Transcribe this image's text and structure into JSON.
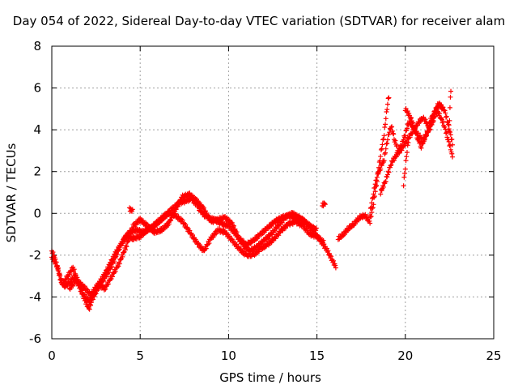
{
  "chart_data": {
    "type": "scatter",
    "title": "Day 054 of 2022, Sidereal Day-to-day VTEC variation (SDTVAR) for receiver alam",
    "xlabel": "GPS time / hours",
    "ylabel": "SDTVAR / TECUs",
    "xlim": [
      0,
      25
    ],
    "ylim": [
      -6,
      8
    ],
    "xticks": [
      0,
      5,
      10,
      15,
      20,
      25
    ],
    "yticks": [
      -6,
      -4,
      -2,
      0,
      2,
      4,
      6,
      8
    ],
    "xtick_labels": [
      "0",
      "5",
      "10",
      "15",
      "20",
      "25"
    ],
    "ytick_labels": [
      "-6",
      "-4",
      "-2",
      "0",
      "2",
      "4",
      "6",
      "8"
    ],
    "grid": true,
    "marker": "+",
    "series": [
      {
        "name": "SDTVAR",
        "color": "#ff0000",
        "tracks": [
          [
            [
              0.0,
              -1.8
            ],
            [
              0.2,
              -2.2
            ],
            [
              0.35,
              -2.7
            ],
            [
              0.5,
              -3.2
            ],
            [
              0.7,
              -3.5
            ],
            [
              1.0,
              -3.3
            ],
            [
              1.3,
              -3.0
            ],
            [
              1.6,
              -3.6
            ],
            [
              1.9,
              -4.2
            ],
            [
              2.1,
              -4.6
            ],
            [
              2.3,
              -4.1
            ],
            [
              2.6,
              -3.6
            ],
            [
              2.9,
              -3.2
            ],
            [
              3.2,
              -2.8
            ],
            [
              3.5,
              -2.3
            ],
            [
              3.8,
              -1.7
            ],
            [
              4.1,
              -1.2
            ],
            [
              4.4,
              -0.9
            ],
            [
              4.8,
              -0.8
            ],
            [
              5.2,
              -0.9
            ],
            [
              5.6,
              -0.7
            ],
            [
              6.0,
              -0.4
            ],
            [
              6.4,
              -0.1
            ],
            [
              6.8,
              0.2
            ],
            [
              7.2,
              0.5
            ],
            [
              7.6,
              0.6
            ],
            [
              7.9,
              0.7
            ],
            [
              8.2,
              0.4
            ],
            [
              8.5,
              0.0
            ],
            [
              8.8,
              -0.2
            ],
            [
              9.2,
              -0.3
            ],
            [
              9.6,
              -0.5
            ],
            [
              10.0,
              -0.6
            ],
            [
              10.4,
              -1.0
            ],
            [
              10.8,
              -1.5
            ],
            [
              11.2,
              -1.8
            ],
            [
              11.6,
              -1.6
            ],
            [
              12.0,
              -1.3
            ],
            [
              12.4,
              -1.0
            ],
            [
              12.8,
              -0.6
            ],
            [
              13.2,
              -0.2
            ],
            [
              13.6,
              0.0
            ],
            [
              14.0,
              -0.2
            ],
            [
              14.4,
              -0.5
            ],
            [
              14.8,
              -0.9
            ],
            [
              15.2,
              -1.3
            ],
            [
              15.6,
              -1.8
            ],
            [
              15.9,
              -2.3
            ],
            [
              16.1,
              -2.6
            ]
          ],
          [
            [
              0.0,
              -2.1
            ],
            [
              0.3,
              -2.5
            ],
            [
              0.6,
              -3.4
            ],
            [
              0.9,
              -3.0
            ],
            [
              1.2,
              -2.6
            ],
            [
              1.5,
              -3.3
            ],
            [
              1.8,
              -3.9
            ],
            [
              2.1,
              -4.2
            ],
            [
              2.4,
              -3.8
            ],
            [
              2.7,
              -3.3
            ],
            [
              3.0,
              -2.9
            ],
            [
              3.3,
              -2.4
            ],
            [
              3.6,
              -1.9
            ],
            [
              3.9,
              -1.5
            ],
            [
              4.2,
              -1.1
            ],
            [
              4.6,
              -1.2
            ],
            [
              5.0,
              -1.1
            ],
            [
              5.4,
              -0.8
            ],
            [
              5.8,
              -0.6
            ],
            [
              6.2,
              -0.3
            ],
            [
              6.6,
              0.0
            ],
            [
              7.0,
              -0.1
            ],
            [
              7.4,
              -0.4
            ],
            [
              7.8,
              -0.9
            ],
            [
              8.2,
              -1.4
            ],
            [
              8.6,
              -1.8
            ],
            [
              9.0,
              -1.2
            ],
            [
              9.4,
              -0.8
            ],
            [
              9.8,
              -0.9
            ],
            [
              10.2,
              -1.3
            ],
            [
              10.6,
              -1.7
            ],
            [
              11.0,
              -2.0
            ],
            [
              11.4,
              -2.0
            ],
            [
              11.8,
              -1.7
            ],
            [
              12.2,
              -1.5
            ],
            [
              12.6,
              -1.2
            ],
            [
              13.0,
              -0.8
            ],
            [
              13.4,
              -0.5
            ],
            [
              13.8,
              -0.4
            ],
            [
              14.2,
              -0.6
            ],
            [
              14.6,
              -1.0
            ],
            [
              15.0,
              -1.1
            ],
            [
              15.4,
              -1.4
            ]
          ],
          [
            [
              1.0,
              -3.6
            ],
            [
              1.4,
              -3.2
            ],
            [
              1.8,
              -3.5
            ],
            [
              2.2,
              -3.9
            ],
            [
              2.6,
              -3.4
            ],
            [
              3.0,
              -3.6
            ],
            [
              3.4,
              -3.0
            ],
            [
              3.8,
              -2.4
            ],
            [
              4.2,
              -1.6
            ],
            [
              4.6,
              -0.6
            ],
            [
              5.0,
              -0.3
            ],
            [
              5.4,
              -0.6
            ],
            [
              5.8,
              -0.9
            ],
            [
              6.2,
              -0.8
            ],
            [
              6.6,
              -0.5
            ],
            [
              7.0,
              0.2
            ],
            [
              7.4,
              0.8
            ],
            [
              7.8,
              0.9
            ],
            [
              8.2,
              0.6
            ],
            [
              8.6,
              0.2
            ],
            [
              9.0,
              -0.4
            ],
            [
              9.4,
              -0.3
            ],
            [
              9.8,
              -0.2
            ],
            [
              10.2,
              -0.5
            ],
            [
              10.6,
              -1.2
            ],
            [
              11.0,
              -1.5
            ],
            [
              11.4,
              -1.3
            ],
            [
              11.8,
              -1.0
            ],
            [
              12.2,
              -0.7
            ],
            [
              12.6,
              -0.4
            ],
            [
              13.0,
              -0.2
            ],
            [
              13.4,
              -0.1
            ],
            [
              13.8,
              -0.2
            ],
            [
              14.2,
              -0.3
            ],
            [
              14.6,
              -0.6
            ],
            [
              15.0,
              -0.8
            ]
          ],
          [
            [
              16.2,
              -1.2
            ],
            [
              16.5,
              -1.0
            ],
            [
              16.8,
              -0.7
            ],
            [
              17.1,
              -0.5
            ],
            [
              17.4,
              -0.2
            ],
            [
              17.7,
              -0.1
            ],
            [
              18.0,
              -0.4
            ],
            [
              18.2,
              0.5
            ],
            [
              18.4,
              1.6
            ],
            [
              18.6,
              2.8
            ],
            [
              18.8,
              3.8
            ],
            [
              19.0,
              5.3
            ],
            [
              19.1,
              5.7
            ]
          ],
          [
            [
              18.0,
              0.0
            ],
            [
              18.2,
              1.0
            ],
            [
              18.4,
              1.8
            ],
            [
              18.6,
              2.2
            ],
            [
              18.8,
              2.6
            ],
            [
              19.0,
              3.6
            ],
            [
              19.2,
              4.2
            ],
            [
              19.4,
              3.5
            ],
            [
              19.6,
              3.0
            ],
            [
              19.8,
              3.3
            ],
            [
              20.0,
              3.8
            ],
            [
              20.2,
              4.4
            ],
            [
              20.4,
              4.2
            ],
            [
              20.6,
              3.9
            ],
            [
              20.8,
              3.7
            ],
            [
              21.0,
              3.5
            ],
            [
              21.2,
              3.8
            ],
            [
              21.4,
              4.1
            ],
            [
              21.6,
              4.5
            ],
            [
              21.8,
              4.9
            ],
            [
              22.0,
              4.6
            ],
            [
              22.2,
              4.2
            ],
            [
              22.4,
              3.6
            ],
            [
              22.6,
              3.0
            ],
            [
              22.7,
              2.5
            ]
          ],
          [
            [
              18.6,
              1.0
            ],
            [
              18.9,
              1.6
            ],
            [
              19.2,
              2.4
            ],
            [
              19.5,
              2.8
            ],
            [
              19.8,
              3.1
            ],
            [
              20.1,
              3.5
            ],
            [
              20.4,
              3.9
            ],
            [
              20.7,
              4.3
            ],
            [
              21.0,
              4.6
            ],
            [
              21.3,
              4.2
            ],
            [
              21.6,
              4.8
            ],
            [
              21.9,
              5.2
            ],
            [
              22.2,
              5.0
            ],
            [
              22.5,
              4.0
            ],
            [
              22.7,
              3.2
            ]
          ],
          [
            [
              20.0,
              5.0
            ],
            [
              20.3,
              4.6
            ],
            [
              20.5,
              4.1
            ],
            [
              20.7,
              3.6
            ],
            [
              20.9,
              3.2
            ],
            [
              21.1,
              3.6
            ],
            [
              21.3,
              4.0
            ],
            [
              21.5,
              4.4
            ],
            [
              21.7,
              4.9
            ],
            [
              21.9,
              5.3
            ],
            [
              22.1,
              5.0
            ]
          ],
          [
            [
              19.9,
              1.4
            ],
            [
              20.0,
              2.2
            ],
            [
              20.1,
              3.0
            ],
            [
              20.2,
              3.6
            ]
          ],
          [
            [
              22.4,
              3.6
            ],
            [
              22.5,
              4.5
            ],
            [
              22.55,
              5.5
            ],
            [
              22.6,
              6.3
            ]
          ],
          [
            [
              15.3,
              0.4
            ],
            [
              15.5,
              0.5
            ]
          ],
          [
            [
              4.4,
              0.2
            ],
            [
              4.6,
              0.1
            ]
          ]
        ]
      }
    ]
  }
}
